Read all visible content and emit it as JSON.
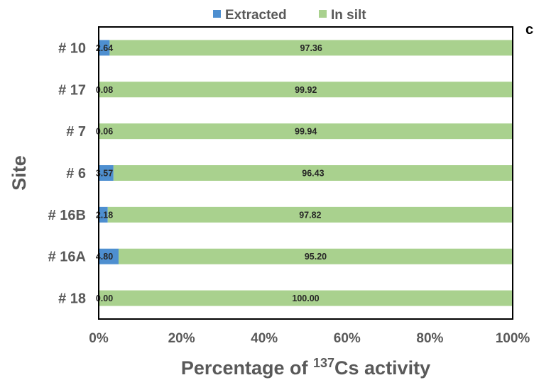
{
  "chart_data": {
    "type": "bar",
    "orientation": "horizontal",
    "stacked": true,
    "normalized_percent": true,
    "categories": [
      "# 10",
      "# 17",
      "# 7",
      "# 6",
      "# 16B",
      "# 16A",
      "# 18"
    ],
    "series": [
      {
        "name": "Extracted",
        "color": "#4e8fd0",
        "values": [
          2.64,
          0.08,
          0.06,
          3.57,
          2.18,
          4.8,
          0.0
        ],
        "labels": [
          "2.64",
          "0.08",
          "0.06",
          "3.57",
          "2.18",
          "4.80",
          "0.00"
        ]
      },
      {
        "name": "In silt",
        "color": "#a9d18e",
        "values": [
          97.36,
          99.92,
          99.94,
          96.43,
          97.82,
          95.2,
          100.0
        ],
        "labels": [
          "97.36",
          "99.92",
          "99.94",
          "96.43",
          "97.82",
          "95.20",
          "100.00"
        ]
      }
    ],
    "xlabel_prefix": "Percentage of ",
    "xlabel_sup": "137",
    "xlabel_suffix": "Cs activity",
    "ylabel": "Site",
    "xlim": [
      0,
      100
    ],
    "x_ticks": [
      "0%",
      "20%",
      "40%",
      "60%",
      "80%",
      "100%"
    ],
    "legend_position": "top",
    "grid": false,
    "panel_letter": "c"
  }
}
